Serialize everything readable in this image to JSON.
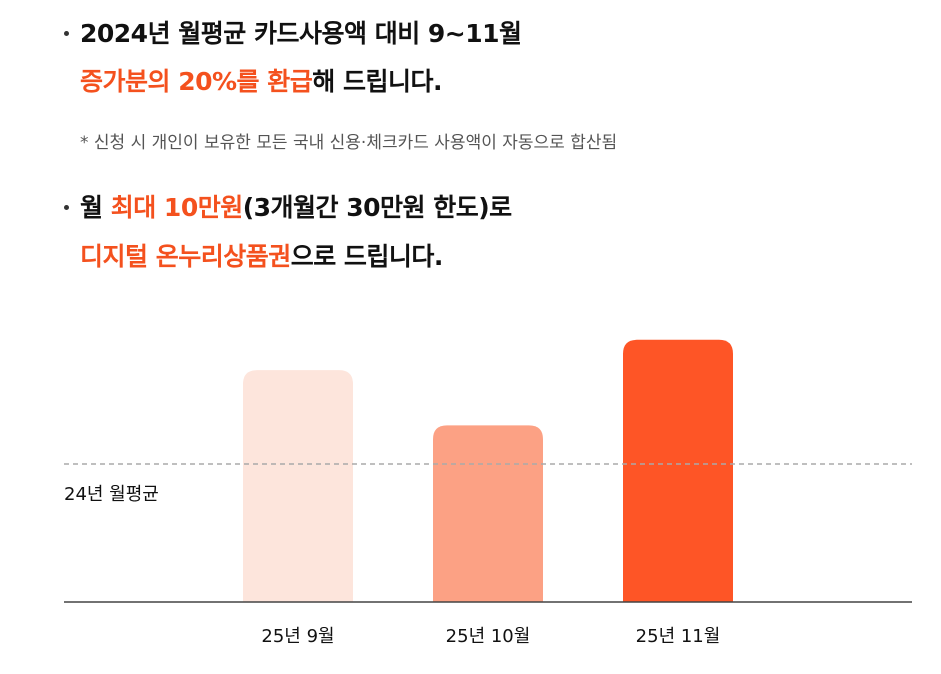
{
  "bullets": [
    {
      "lines": [
        [
          {
            "text": "2024년 월평균 카드사용액 대비 9~11월",
            "highlight": false
          }
        ],
        [
          {
            "text": "증가분의 20%를 환급",
            "highlight": true
          },
          {
            "text": "해 드립니다.",
            "highlight": false
          }
        ]
      ],
      "note": "* 신청 시 개인이 보유한 모든 국내 신용·체크카드 사용액이 자동으로 합산됨"
    },
    {
      "lines": [
        [
          {
            "text": "월 ",
            "highlight": false
          },
          {
            "text": "최대 10만원",
            "highlight": true
          },
          {
            "text": "(3개월간 30만원 한도)로",
            "highlight": false
          }
        ],
        [
          {
            "text": "디지털 온누리상품권",
            "highlight": true
          },
          {
            "text": "으로 드립니다.",
            "highlight": false
          }
        ]
      ]
    }
  ],
  "highlight_color": "#f4511e",
  "chart_data": {
    "type": "bar",
    "categories": [
      "25년 9월",
      "25년 10월",
      "25년 11월"
    ],
    "values": [
      168,
      128,
      190
    ],
    "colors": [
      "#fde5dc",
      "#fca184",
      "#fe5526"
    ],
    "ylim": [
      0,
      200
    ],
    "reference": {
      "label": "24년 월평균",
      "value": 100
    }
  }
}
